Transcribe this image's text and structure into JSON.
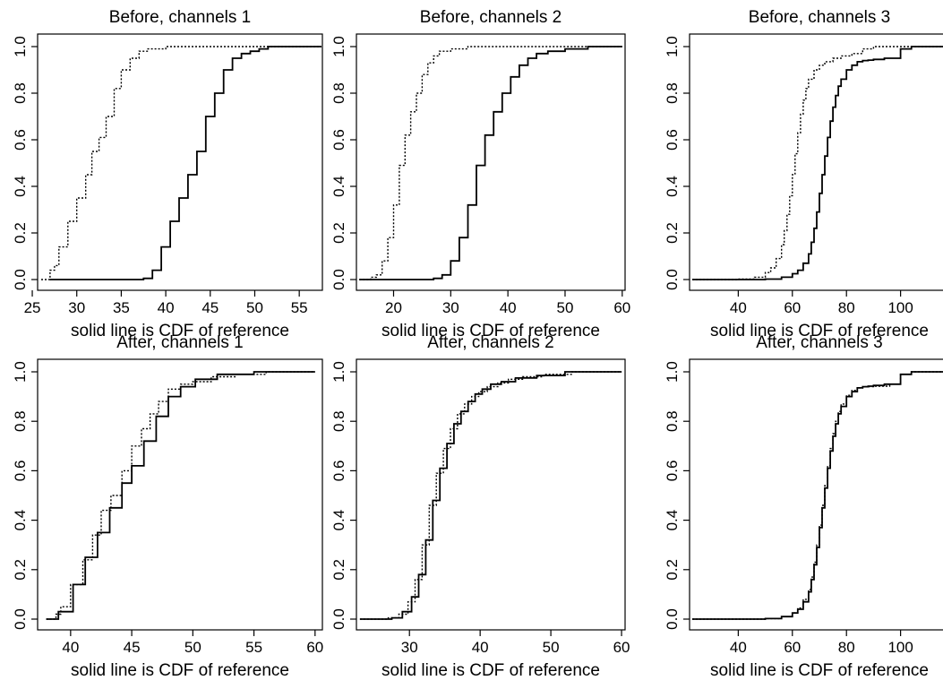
{
  "figure": {
    "ink_color": "#000000",
    "background": "#ffffff"
  },
  "chart_data": [
    {
      "type": "line",
      "subtype": "step-cdf",
      "title": "Before, channels 1",
      "xlabel": "solid line is CDF of reference",
      "ylabel": "",
      "xlim": [
        25.6,
        57.6
      ],
      "ylim": [
        0,
        1
      ],
      "xticks": [
        25,
        30,
        35,
        40,
        45,
        50,
        55
      ],
      "yticks": [
        0.0,
        0.2,
        0.4,
        0.6,
        0.8,
        1.0
      ],
      "series": [
        {
          "style": "dotted",
          "x": [
            26.0,
            27.0,
            27.5,
            28.0,
            29.0,
            30.0,
            31.0,
            31.7,
            32.5,
            33.3,
            34.2,
            35.0,
            36.0,
            37.0,
            38.0,
            40.0,
            57.5
          ],
          "y": [
            0.0,
            0.04,
            0.06,
            0.14,
            0.25,
            0.35,
            0.45,
            0.55,
            0.61,
            0.7,
            0.82,
            0.9,
            0.95,
            0.98,
            0.99,
            1.0,
            1.0
          ]
        },
        {
          "style": "solid",
          "x": [
            27.0,
            37.5,
            38.5,
            39.5,
            40.5,
            41.5,
            42.5,
            43.5,
            44.5,
            45.5,
            46.5,
            47.5,
            48.5,
            49.5,
            50.5,
            51.5,
            53.0,
            57.5
          ],
          "y": [
            0.0,
            0.005,
            0.04,
            0.14,
            0.25,
            0.35,
            0.45,
            0.55,
            0.7,
            0.8,
            0.9,
            0.95,
            0.97,
            0.98,
            0.99,
            1.0,
            1.0,
            1.0
          ]
        }
      ]
    },
    {
      "type": "line",
      "subtype": "step-cdf",
      "title": "Before, channels 2",
      "xlabel": "solid line is CDF of reference",
      "ylabel": "",
      "xlim": [
        13.5,
        60.5
      ],
      "ylim": [
        0,
        1
      ],
      "xticks": [
        20,
        30,
        40,
        50,
        60
      ],
      "yticks": [
        0.0,
        0.2,
        0.4,
        0.6,
        0.8,
        1.0
      ],
      "series": [
        {
          "style": "dotted",
          "x": [
            14.0,
            16.0,
            17.0,
            18.0,
            19.0,
            20.0,
            21.0,
            22.0,
            23.0,
            24.0,
            25.0,
            26.0,
            27.0,
            28.0,
            30.0,
            33.0,
            60.0
          ],
          "y": [
            0.0,
            0.01,
            0.02,
            0.08,
            0.18,
            0.32,
            0.49,
            0.62,
            0.72,
            0.8,
            0.88,
            0.93,
            0.96,
            0.98,
            0.99,
            1.0,
            1.0
          ]
        },
        {
          "style": "solid",
          "x": [
            14.0,
            27.0,
            28.5,
            30.0,
            31.5,
            33.0,
            34.5,
            36.0,
            37.5,
            39.0,
            40.5,
            42.0,
            43.5,
            45.0,
            47.0,
            50.0,
            54.0,
            60.0
          ],
          "y": [
            0.0,
            0.005,
            0.02,
            0.08,
            0.18,
            0.32,
            0.49,
            0.62,
            0.72,
            0.8,
            0.87,
            0.92,
            0.95,
            0.97,
            0.98,
            0.99,
            1.0,
            1.0
          ]
        }
      ]
    },
    {
      "type": "line",
      "subtype": "step-cdf",
      "title": "Before, channels 3",
      "xlabel": "solid line is CDF of reference",
      "ylabel": "",
      "xlim": [
        22,
        118
      ],
      "ylim": [
        0,
        1
      ],
      "xticks": [
        40,
        60,
        80,
        100
      ],
      "yticks": [
        0.0,
        0.2,
        0.4,
        0.6,
        0.8,
        1.0
      ],
      "series": [
        {
          "style": "dotted",
          "x": [
            23,
            40,
            46,
            50,
            52,
            54,
            56,
            57,
            58,
            59,
            60,
            61,
            62,
            63,
            64,
            65,
            66,
            68,
            70,
            72,
            75,
            78,
            82,
            86,
            90,
            116
          ],
          "y": [
            0.0,
            0.002,
            0.01,
            0.03,
            0.05,
            0.09,
            0.15,
            0.21,
            0.28,
            0.36,
            0.45,
            0.54,
            0.63,
            0.71,
            0.77,
            0.82,
            0.86,
            0.9,
            0.92,
            0.935,
            0.95,
            0.96,
            0.97,
            0.99,
            1.0,
            1.0
          ]
        },
        {
          "style": "solid",
          "x": [
            23,
            50,
            56,
            60,
            62,
            64,
            66,
            67,
            68,
            69,
            70,
            71,
            72,
            73,
            74,
            75,
            76,
            77,
            78,
            80,
            82,
            84,
            86,
            88,
            90,
            94,
            100,
            104,
            116
          ],
          "y": [
            0.0,
            0.002,
            0.01,
            0.025,
            0.04,
            0.07,
            0.11,
            0.16,
            0.22,
            0.29,
            0.37,
            0.45,
            0.53,
            0.61,
            0.68,
            0.74,
            0.79,
            0.83,
            0.86,
            0.9,
            0.92,
            0.935,
            0.94,
            0.942,
            0.945,
            0.95,
            0.99,
            1.0,
            1.0
          ]
        }
      ]
    },
    {
      "type": "line",
      "subtype": "step-cdf",
      "title": "After, channels 1",
      "xlabel": "solid line is CDF of reference",
      "ylabel": "",
      "xlim": [
        37.3,
        60.6
      ],
      "ylim": [
        0,
        1
      ],
      "xticks": [
        40,
        45,
        50,
        55,
        60
      ],
      "yticks": [
        0.0,
        0.2,
        0.4,
        0.6,
        0.8,
        1.0
      ],
      "series": [
        {
          "style": "dotted",
          "x": [
            38.0,
            38.8,
            39.2,
            40.0,
            41.0,
            41.8,
            42.5,
            43.3,
            44.2,
            45.0,
            45.8,
            46.5,
            47.2,
            48.0,
            49.0,
            50.0,
            51.5,
            53.5,
            56.0,
            60.0
          ],
          "y": [
            0.0,
            0.02,
            0.05,
            0.14,
            0.24,
            0.34,
            0.44,
            0.5,
            0.6,
            0.7,
            0.77,
            0.83,
            0.88,
            0.93,
            0.95,
            0.96,
            0.98,
            0.99,
            1.0,
            1.0
          ]
        },
        {
          "style": "solid",
          "x": [
            38.0,
            39.0,
            40.2,
            41.2,
            42.2,
            43.2,
            44.2,
            45.0,
            46.0,
            47.0,
            48.0,
            49.0,
            50.2,
            52.0,
            55.0,
            60.0
          ],
          "y": [
            0.0,
            0.03,
            0.14,
            0.25,
            0.35,
            0.45,
            0.55,
            0.62,
            0.72,
            0.82,
            0.9,
            0.94,
            0.97,
            0.99,
            1.0,
            1.0
          ]
        }
      ]
    },
    {
      "type": "line",
      "subtype": "step-cdf",
      "title": "After, channels 2",
      "xlabel": "solid line is CDF of reference",
      "ylabel": "",
      "xlim": [
        22.5,
        60.5
      ],
      "ylim": [
        0,
        1
      ],
      "xticks": [
        30,
        40,
        50,
        60
      ],
      "yticks": [
        0.0,
        0.2,
        0.4,
        0.6,
        0.8,
        1.0
      ],
      "series": [
        {
          "style": "dotted",
          "x": [
            23.0,
            27.0,
            28.5,
            29.8,
            30.8,
            31.8,
            32.8,
            33.8,
            34.8,
            35.8,
            36.8,
            37.8,
            38.8,
            39.8,
            41.0,
            42.5,
            44.0,
            46.0,
            49.0,
            53.0,
            60.0
          ],
          "y": [
            0.0,
            0.005,
            0.02,
            0.07,
            0.16,
            0.3,
            0.46,
            0.59,
            0.69,
            0.77,
            0.83,
            0.87,
            0.9,
            0.92,
            0.94,
            0.955,
            0.97,
            0.98,
            0.99,
            1.0,
            1.0
          ]
        },
        {
          "style": "solid",
          "x": [
            23.0,
            27.5,
            29.0,
            30.3,
            31.3,
            32.3,
            33.3,
            34.3,
            35.3,
            36.3,
            37.3,
            38.3,
            39.3,
            40.3,
            41.5,
            43.0,
            45.0,
            48.0,
            52.0,
            60.0
          ],
          "y": [
            0.0,
            0.005,
            0.03,
            0.09,
            0.18,
            0.32,
            0.48,
            0.61,
            0.71,
            0.79,
            0.84,
            0.88,
            0.91,
            0.93,
            0.95,
            0.96,
            0.975,
            0.985,
            1.0,
            1.0
          ]
        }
      ]
    },
    {
      "type": "line",
      "subtype": "step-cdf",
      "title": "After, channels 3",
      "xlabel": "solid line is CDF of reference",
      "ylabel": "",
      "xlim": [
        22,
        118
      ],
      "ylim": [
        0,
        1
      ],
      "xticks": [
        40,
        60,
        80,
        100
      ],
      "yticks": [
        0.0,
        0.2,
        0.4,
        0.6,
        0.8,
        1.0
      ],
      "series": [
        {
          "style": "dotted",
          "x": [
            23,
            50,
            56,
            60,
            62,
            64,
            66,
            67,
            68,
            69,
            70,
            71,
            72,
            73,
            74,
            75,
            76,
            77,
            78,
            80,
            82,
            84,
            86,
            90,
            96,
            100,
            104,
            116
          ],
          "y": [
            0.0,
            0.002,
            0.01,
            0.025,
            0.045,
            0.08,
            0.12,
            0.17,
            0.23,
            0.3,
            0.38,
            0.46,
            0.54,
            0.62,
            0.69,
            0.75,
            0.8,
            0.84,
            0.87,
            0.905,
            0.925,
            0.935,
            0.94,
            0.942,
            0.95,
            0.99,
            1.0,
            1.0
          ]
        },
        {
          "style": "solid",
          "x": [
            23,
            50,
            56,
            60,
            62,
            64,
            66,
            67,
            68,
            69,
            70,
            71,
            72,
            73,
            74,
            75,
            76,
            77,
            78,
            80,
            82,
            84,
            86,
            88,
            90,
            94,
            100,
            104,
            116
          ],
          "y": [
            0.0,
            0.002,
            0.01,
            0.025,
            0.04,
            0.07,
            0.11,
            0.16,
            0.22,
            0.29,
            0.37,
            0.45,
            0.53,
            0.61,
            0.68,
            0.74,
            0.79,
            0.83,
            0.86,
            0.9,
            0.92,
            0.935,
            0.94,
            0.942,
            0.945,
            0.95,
            0.99,
            1.0,
            1.0
          ]
        }
      ]
    }
  ]
}
